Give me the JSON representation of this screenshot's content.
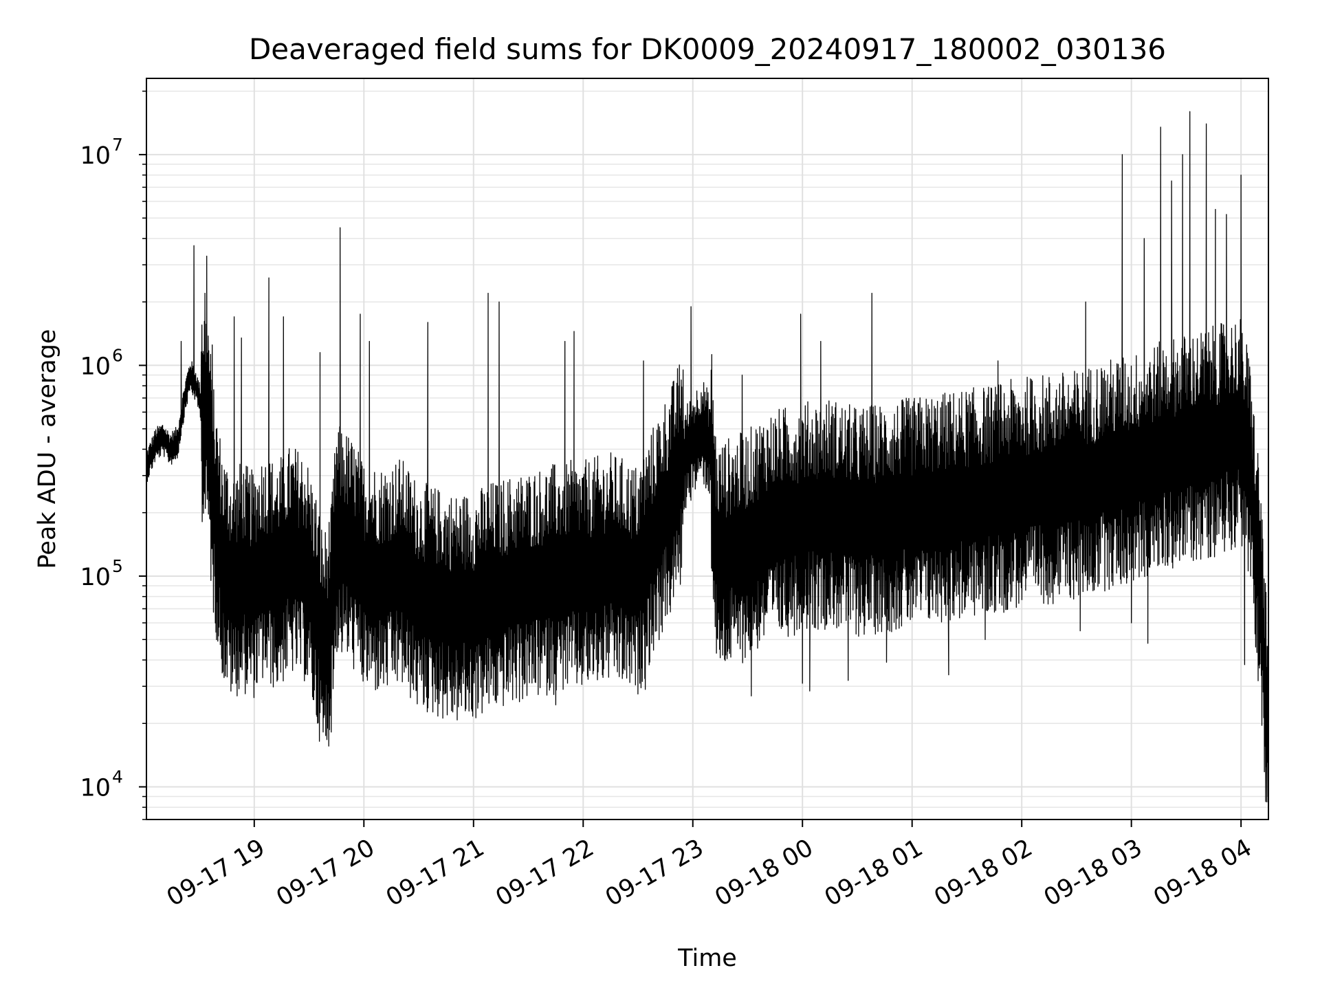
{
  "chart_data": {
    "type": "line",
    "title": "Deaveraged field sums for DK0009_20240917_180002_030136",
    "xlabel": "Time",
    "ylabel": "Peak ADU - average",
    "x_axis": {
      "type": "time",
      "range": [
        "2024-09-17 18:01",
        "2024-09-18 04:15"
      ],
      "ticks": [
        "2024-09-17 19:00",
        "2024-09-17 20:00",
        "2024-09-17 21:00",
        "2024-09-17 22:00",
        "2024-09-17 23:00",
        "2024-09-18 00:00",
        "2024-09-18 01:00",
        "2024-09-18 02:00",
        "2024-09-18 03:00",
        "2024-09-18 04:00"
      ],
      "tick_labels": [
        "09-17 19",
        "09-17 20",
        "09-17 21",
        "09-17 22",
        "09-17 23",
        "09-18 00",
        "09-18 01",
        "09-18 02",
        "09-18 03",
        "09-18 04"
      ]
    },
    "y_axis": {
      "scale": "log",
      "range": [
        7000,
        23000000
      ],
      "ticks": [
        10000,
        100000,
        1000000,
        10000000
      ],
      "tick_labels": [
        {
          "base": "10",
          "exp": "4"
        },
        {
          "base": "10",
          "exp": "5"
        },
        {
          "base": "10",
          "exp": "6"
        },
        {
          "base": "10",
          "exp": "7"
        }
      ]
    },
    "grid": true,
    "series": [
      {
        "color": "#000000",
        "data": [
          [
            "2024-09-17 18:01",
            330000
          ],
          [
            "2024-09-17 18:06",
            420000
          ],
          [
            "2024-09-17 18:10",
            450000
          ],
          [
            "2024-09-17 18:14",
            400000
          ],
          [
            "2024-09-17 18:18",
            430000
          ],
          [
            "2024-09-17 18:22",
            700000
          ],
          [
            "2024-09-17 18:25",
            900000
          ],
          [
            "2024-09-17 18:28",
            800000
          ],
          [
            "2024-09-17 18:31",
            650000
          ],
          [
            "2024-09-17 18:35",
            500000
          ],
          [
            "2024-09-17 18:37",
            250000
          ],
          [
            "2024-09-17 18:40",
            160000
          ],
          [
            "2024-09-17 18:43",
            110000
          ],
          [
            "2024-09-17 18:48",
            90000
          ],
          [
            "2024-09-17 18:53",
            100000
          ],
          [
            "2024-09-17 18:59",
            90000
          ],
          [
            "2024-09-17 19:05",
            110000
          ],
          [
            "2024-09-17 19:12",
            100000
          ],
          [
            "2024-09-17 19:20",
            120000
          ],
          [
            "2024-09-17 19:28",
            110000
          ],
          [
            "2024-09-17 19:34",
            70000
          ],
          [
            "2024-09-17 19:38",
            45000
          ],
          [
            "2024-09-17 19:42",
            60000
          ],
          [
            "2024-09-17 19:45",
            150000
          ],
          [
            "2024-09-17 19:50",
            140000
          ],
          [
            "2024-09-17 19:56",
            120000
          ],
          [
            "2024-09-17 20:00",
            100000
          ],
          [
            "2024-09-17 20:10",
            95000
          ],
          [
            "2024-09-17 20:20",
            105000
          ],
          [
            "2024-09-17 20:30",
            80000
          ],
          [
            "2024-09-17 20:40",
            75000
          ],
          [
            "2024-09-17 20:50",
            70000
          ],
          [
            "2024-09-17 21:00",
            72000
          ],
          [
            "2024-09-17 21:10",
            80000
          ],
          [
            "2024-09-17 21:20",
            85000
          ],
          [
            "2024-09-17 21:30",
            90000
          ],
          [
            "2024-09-17 21:40",
            95000
          ],
          [
            "2024-09-17 21:50",
            100000
          ],
          [
            "2024-09-17 22:00",
            100000
          ],
          [
            "2024-09-17 22:15",
            110000
          ],
          [
            "2024-09-17 22:30",
            95000
          ],
          [
            "2024-09-17 22:40",
            160000
          ],
          [
            "2024-09-17 22:50",
            250000
          ],
          [
            "2024-09-17 22:55",
            350000
          ],
          [
            "2024-09-17 23:00",
            420000
          ],
          [
            "2024-09-17 23:05",
            500000
          ],
          [
            "2024-09-17 23:10",
            400000
          ],
          [
            "2024-09-17 23:13",
            120000
          ],
          [
            "2024-09-17 23:20",
            130000
          ],
          [
            "2024-09-17 23:30",
            140000
          ],
          [
            "2024-09-17 23:40",
            170000
          ],
          [
            "2024-09-17 23:50",
            180000
          ],
          [
            "2024-09-18 00:00",
            190000
          ],
          [
            "2024-09-18 00:15",
            200000
          ],
          [
            "2024-09-18 00:30",
            180000
          ],
          [
            "2024-09-18 00:45",
            190000
          ],
          [
            "2024-09-18 01:00",
            200000
          ],
          [
            "2024-09-18 01:15",
            210000
          ],
          [
            "2024-09-18 01:30",
            220000
          ],
          [
            "2024-09-18 01:45",
            230000
          ],
          [
            "2024-09-18 02:00",
            250000
          ],
          [
            "2024-09-18 02:15",
            260000
          ],
          [
            "2024-09-18 02:30",
            270000
          ],
          [
            "2024-09-18 02:45",
            300000
          ],
          [
            "2024-09-18 03:00",
            320000
          ],
          [
            "2024-09-18 03:10",
            350000
          ],
          [
            "2024-09-18 03:20",
            380000
          ],
          [
            "2024-09-18 03:30",
            400000
          ],
          [
            "2024-09-18 03:40",
            420000
          ],
          [
            "2024-09-18 03:50",
            450000
          ],
          [
            "2024-09-18 04:00",
            500000
          ],
          [
            "2024-09-18 04:05",
            300000
          ],
          [
            "2024-09-18 04:08",
            150000
          ],
          [
            "2024-09-18 04:11",
            80000
          ],
          [
            "2024-09-18 04:14",
            20000
          ]
        ],
        "spikes": [
          [
            "2024-09-17 18:20",
            1300000
          ],
          [
            "2024-09-17 18:27",
            3700000
          ],
          [
            "2024-09-17 18:33",
            2200000
          ],
          [
            "2024-09-17 18:34",
            3300000
          ],
          [
            "2024-09-17 18:37",
            1250000
          ],
          [
            "2024-09-17 18:49",
            1700000
          ],
          [
            "2024-09-17 18:53",
            1350000
          ],
          [
            "2024-09-17 19:08",
            2600000
          ],
          [
            "2024-09-17 19:16",
            1700000
          ],
          [
            "2024-09-17 19:36",
            1150000
          ],
          [
            "2024-09-17 19:47",
            4500000
          ],
          [
            "2024-09-17 19:58",
            1750000
          ],
          [
            "2024-09-17 20:03",
            1300000
          ],
          [
            "2024-09-17 20:35",
            1600000
          ],
          [
            "2024-09-17 21:08",
            2200000
          ],
          [
            "2024-09-17 21:14",
            2000000
          ],
          [
            "2024-09-17 21:50",
            1300000
          ],
          [
            "2024-09-17 21:55",
            1450000
          ],
          [
            "2024-09-17 22:33",
            1050000
          ],
          [
            "2024-09-17 22:59",
            1900000
          ],
          [
            "2024-09-17 23:27",
            900000
          ],
          [
            "2024-09-17 23:59",
            1750000
          ],
          [
            "2024-09-18 00:10",
            1300000
          ],
          [
            "2024-09-18 00:38",
            2200000
          ],
          [
            "2024-09-18 01:47",
            1050000
          ],
          [
            "2024-09-18 02:35",
            2000000
          ],
          [
            "2024-09-18 02:55",
            10000000
          ],
          [
            "2024-09-18 03:07",
            4000000
          ],
          [
            "2024-09-18 03:16",
            13500000
          ],
          [
            "2024-09-18 03:22",
            7500000
          ],
          [
            "2024-09-18 03:28",
            10000000
          ],
          [
            "2024-09-18 03:32",
            16000000
          ],
          [
            "2024-09-18 03:41",
            14000000
          ],
          [
            "2024-09-18 03:46",
            5500000
          ],
          [
            "2024-09-18 03:52",
            5200000
          ],
          [
            "2024-09-18 04:00",
            8000000
          ]
        ],
        "dips": [
          [
            "2024-09-17 18:45",
            47000
          ],
          [
            "2024-09-17 18:50",
            31000
          ],
          [
            "2024-09-17 19:12",
            37000
          ],
          [
            "2024-09-17 19:34",
            22000
          ],
          [
            "2024-09-17 19:36",
            22500
          ],
          [
            "2024-09-17 19:40",
            27000
          ],
          [
            "2024-09-17 20:24",
            38000
          ],
          [
            "2024-09-17 20:48",
            30000
          ],
          [
            "2024-09-17 21:12",
            26000
          ],
          [
            "2024-09-17 21:45",
            24500
          ],
          [
            "2024-09-17 22:34",
            29000
          ],
          [
            "2024-09-17 23:32",
            27000
          ],
          [
            "2024-09-18 00:00",
            31000
          ],
          [
            "2024-09-18 00:04",
            28500
          ],
          [
            "2024-09-18 00:25",
            32000
          ],
          [
            "2024-09-18 00:46",
            39000
          ],
          [
            "2024-09-18 01:20",
            34000
          ],
          [
            "2024-09-18 01:40",
            50000
          ],
          [
            "2024-09-18 02:32",
            55000
          ],
          [
            "2024-09-18 03:00",
            60000
          ],
          [
            "2024-09-18 03:09",
            48000
          ],
          [
            "2024-09-18 04:02",
            38000
          ],
          [
            "2024-09-18 04:14",
            15500
          ]
        ]
      }
    ]
  }
}
